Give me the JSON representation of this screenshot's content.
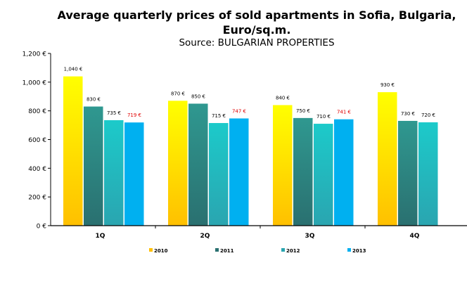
{
  "chart_data": {
    "type": "bar",
    "title_line1": "Average quarterly prices of sold apartments in Sofia, Bulgaria,",
    "title_line2": "Euro/sq.m.",
    "subtitle": "Source: BULGARIAN PROPERTIES",
    "categories": [
      "1Q",
      "2Q",
      "3Q",
      "4Q"
    ],
    "ylim": [
      0,
      1200
    ],
    "yticks": [
      0,
      200,
      400,
      600,
      800,
      1000,
      1200
    ],
    "ytick_labels": [
      "0 €",
      "200 €",
      "400 €",
      "600 €",
      "800 €",
      "1,000 €",
      "1,200 €"
    ],
    "legend_position": "bottom",
    "series": [
      {
        "name": "2010",
        "values": [
          1040,
          870,
          840,
          930
        ],
        "labels": [
          "1,040 €",
          "870 €",
          "840 €",
          "930 €"
        ],
        "color_top": "#ffff00",
        "color_bottom": "#ffc000",
        "label_color": "#000000"
      },
      {
        "name": "2011",
        "values": [
          830,
          850,
          750,
          730
        ],
        "labels": [
          "830 €",
          "850 €",
          "750 €",
          "730 €"
        ],
        "color_top": "#2f9890",
        "color_bottom": "#2a7070",
        "label_color": "#000000"
      },
      {
        "name": "2012",
        "values": [
          735,
          715,
          710,
          720
        ],
        "labels": [
          "735 €",
          "715 €",
          "710 €",
          "720 €"
        ],
        "color_top": "#1ccaca",
        "color_bottom": "#2aa5b0",
        "label_color": "#000000"
      },
      {
        "name": "2013",
        "values": [
          719,
          747,
          741,
          null
        ],
        "labels": [
          "719 €",
          "747 €",
          "741 €",
          null
        ],
        "color_top": "#00b0f0",
        "color_bottom": "#00b0f0",
        "label_color": "#e00000"
      }
    ]
  }
}
